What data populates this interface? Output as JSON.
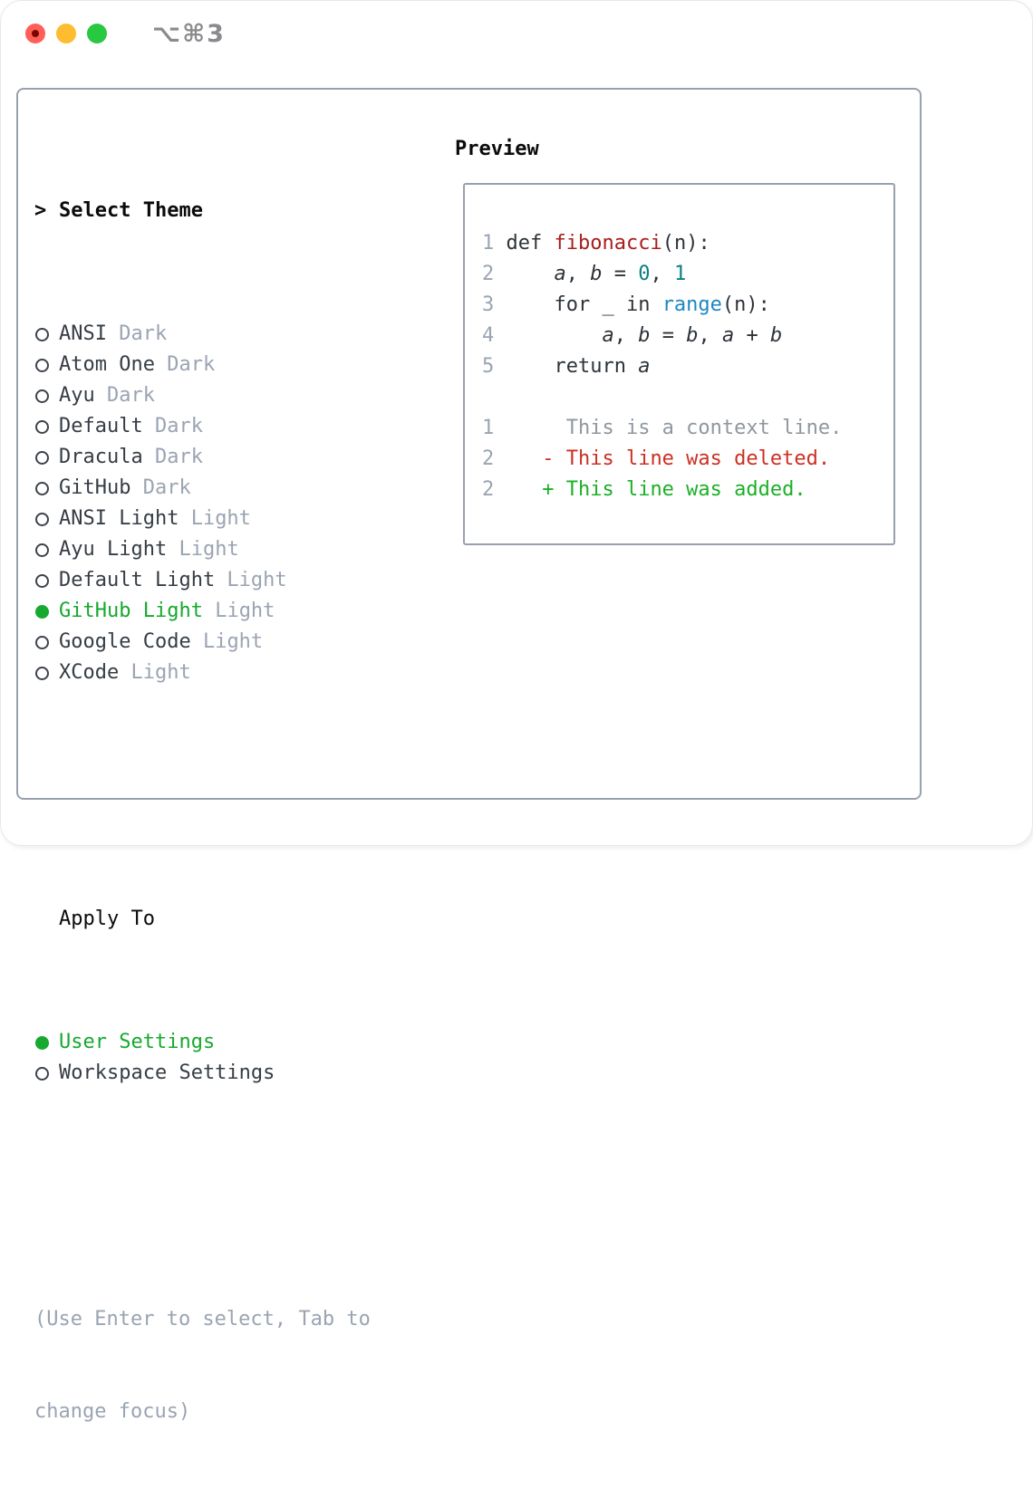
{
  "window": {
    "shortcut": "⌥⌘3",
    "traffic_lights": [
      {
        "name": "close",
        "color": "#ff5f57"
      },
      {
        "name": "minimize",
        "color": "#febc2e"
      },
      {
        "name": "zoom",
        "color": "#28c840"
      }
    ]
  },
  "theme_picker": {
    "prompt": ">",
    "title": "Select Theme",
    "items": [
      {
        "name": "ANSI",
        "variant": "Dark",
        "selected": false
      },
      {
        "name": "Atom One",
        "variant": "Dark",
        "selected": false
      },
      {
        "name": "Ayu",
        "variant": "Dark",
        "selected": false
      },
      {
        "name": "Default",
        "variant": "Dark",
        "selected": false
      },
      {
        "name": "Dracula",
        "variant": "Dark",
        "selected": false
      },
      {
        "name": "GitHub",
        "variant": "Dark",
        "selected": false
      },
      {
        "name": "ANSI Light",
        "variant": "Light",
        "selected": false
      },
      {
        "name": "Ayu Light",
        "variant": "Light",
        "selected": false
      },
      {
        "name": "Default Light",
        "variant": "Light",
        "selected": false
      },
      {
        "name": "GitHub Light",
        "variant": "Light",
        "selected": true
      },
      {
        "name": "Google Code",
        "variant": "Light",
        "selected": false
      },
      {
        "name": "XCode",
        "variant": "Light",
        "selected": false
      }
    ]
  },
  "apply_to": {
    "title": "Apply To",
    "options": [
      {
        "label": "User Settings",
        "selected": true
      },
      {
        "label": "Workspace Settings",
        "selected": false
      }
    ]
  },
  "hint": {
    "line1": "(Use Enter to select, Tab to",
    "line2": "change focus)"
  },
  "preview": {
    "title": "Preview",
    "lines": [
      {
        "num": "1",
        "tokens": [
          [
            "def ",
            "plain"
          ],
          [
            "fibonacci",
            "func"
          ],
          [
            "(n):",
            "plain"
          ]
        ]
      },
      {
        "num": "2",
        "tokens": [
          [
            "    ",
            "plain"
          ],
          [
            "a",
            "var"
          ],
          [
            ", ",
            "plain"
          ],
          [
            "b",
            "var"
          ],
          [
            " = ",
            "plain"
          ],
          [
            "0",
            "num"
          ],
          [
            ", ",
            "plain"
          ],
          [
            "1",
            "num"
          ]
        ]
      },
      {
        "num": "3",
        "tokens": [
          [
            "    for _ in ",
            "plain"
          ],
          [
            "range",
            "builtin"
          ],
          [
            "(n):",
            "plain"
          ]
        ]
      },
      {
        "num": "4",
        "tokens": [
          [
            "        ",
            "plain"
          ],
          [
            "a",
            "var"
          ],
          [
            ", ",
            "plain"
          ],
          [
            "b",
            "var"
          ],
          [
            " = ",
            "plain"
          ],
          [
            "b",
            "var"
          ],
          [
            ", ",
            "plain"
          ],
          [
            "a",
            "var"
          ],
          [
            " + ",
            "plain"
          ],
          [
            "b",
            "var"
          ]
        ]
      },
      {
        "num": "5",
        "tokens": [
          [
            "    return ",
            "plain"
          ],
          [
            "a",
            "var"
          ]
        ]
      },
      {
        "num": "",
        "tokens": []
      },
      {
        "num": "1",
        "tokens": [
          [
            "     This is a context line.",
            "context"
          ]
        ]
      },
      {
        "num": "2",
        "tokens": [
          [
            "   - This line was deleted.",
            "deleted"
          ]
        ]
      },
      {
        "num": "2",
        "tokens": [
          [
            "   + This line was added.",
            "added"
          ]
        ]
      }
    ]
  },
  "colors": {
    "selected_green": "#17a82f",
    "muted_gray": "#9aa4b2",
    "panel_border": "#98a1ad",
    "function_red": "#a81d1d",
    "number_teal": "#0b7e81",
    "builtin_blue": "#1e87c2",
    "diff_deleted_red": "#cc2f24",
    "diff_added_green": "#1bb025",
    "diff_context_gray": "#8f979f",
    "traffic_red": "#ff5f57",
    "traffic_yellow": "#febc2e",
    "traffic_green": "#28c840"
  }
}
